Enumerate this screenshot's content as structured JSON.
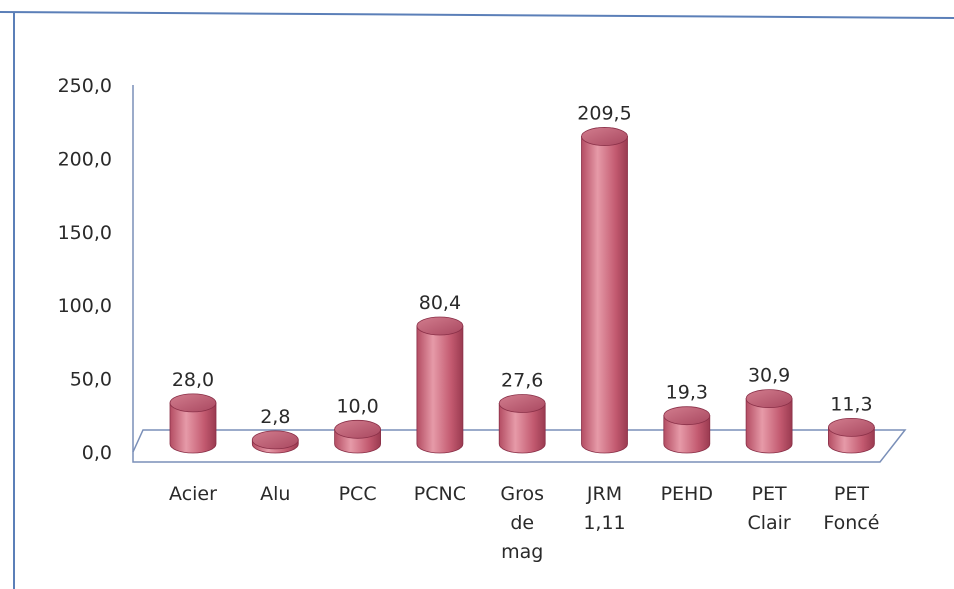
{
  "chart_data": {
    "type": "bar",
    "categories": [
      [
        "Acier"
      ],
      [
        "Alu"
      ],
      [
        "PCC"
      ],
      [
        "PCNC"
      ],
      [
        "Gros",
        "de",
        "mag"
      ],
      [
        "JRM",
        "1,11"
      ],
      [
        "PEHD"
      ],
      [
        "PET",
        "Clair"
      ],
      [
        "PET",
        "Foncé"
      ]
    ],
    "values": [
      28.0,
      2.8,
      10.0,
      80.4,
      27.6,
      209.5,
      19.3,
      30.9,
      11.3
    ],
    "value_labels": [
      "28,0",
      "2,8",
      "10,0",
      "80,4",
      "27,6",
      "209,5",
      "19,3",
      "30,9",
      "11,3"
    ],
    "y_ticks": [
      0,
      50,
      100,
      150,
      200,
      250
    ],
    "y_tick_labels": [
      "0,0",
      "50,0",
      "100,0",
      "150,0",
      "200,0",
      "250,0"
    ],
    "ylim": [
      0,
      250
    ],
    "grid": false,
    "bar_style": "3d-cylinder",
    "bar_color": "#c9677a"
  }
}
